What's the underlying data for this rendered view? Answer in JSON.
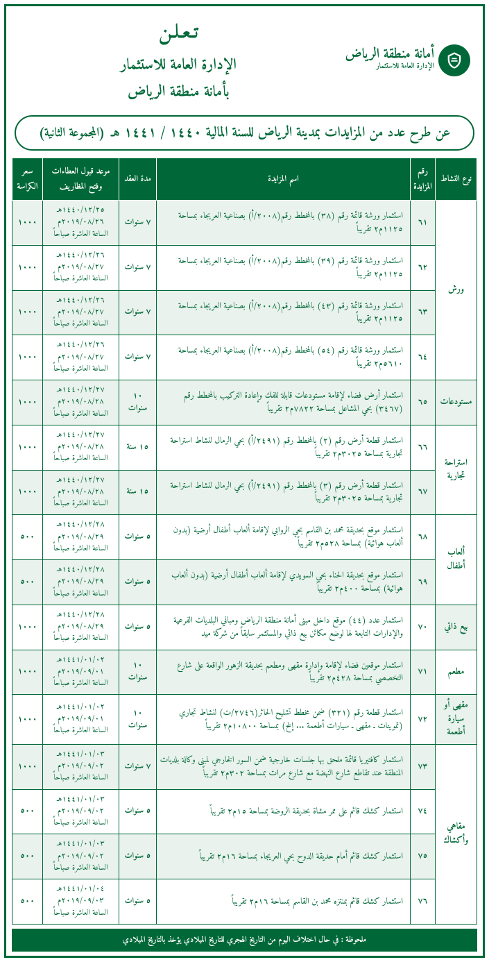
{
  "header": {
    "logo_line1": "أمانة منطقة الرياض",
    "logo_line2": "الإدارة العامة للاستثمار",
    "announce_line1": "تـعـلـن",
    "announce_line2": "الإدارة العامة للاستثمار",
    "announce_line3": "بأمانة منطقة الرياض"
  },
  "subtitle": {
    "main": "عن طرح عدد من المزايدات بمدينة الرياض للسنة المالية ١٤٤٠ / ١٤٤١ هـ",
    "paren": "(المجموعة الثانية)"
  },
  "columns": {
    "activity": "نوع النشاط",
    "num": "رقم المزايدة",
    "name": "اسم المزايدة",
    "duration": "مدة العقد",
    "date": "موعد قبول العطاءات وفتح المظاريف",
    "price": "سعر الكراسة"
  },
  "groups": [
    {
      "label": "ورش",
      "alt": false,
      "rows": [
        {
          "num": "٦١",
          "name": "استثمار ورشة قائمة رقم (٣٨) بالمخطط رقم(٢٠٠٨/أ) بصناعية العريجاء بمساحة ١١٢٥م٢ تقريباً",
          "dur": "٧ سنوات",
          "date_h": "١٤٤٠/١٢/٢٥هـ",
          "date_g": "٢٠١٩/٠٨/٢٦م",
          "time": "الساعة العاشرة صباحاً",
          "price": "١٠٠٠",
          "alt": true
        },
        {
          "num": "٦٢",
          "name": "استثمار ورشة قائمة رقم (٣٩) بالمخطط رقم(٢٠٠٨/أ) بصناعية العريجاء بمساحة ١١٢٥م٢ تقريباً",
          "dur": "٧ سنوات",
          "date_h": "١٤٤٠/١٢/٢٦هـ",
          "date_g": "٢٠١٩/٠٨/٢٧م",
          "time": "الساعة العاشرة صباحاً",
          "price": "١٠٠٠",
          "alt": false
        },
        {
          "num": "٦٣",
          "name": "استثمار ورشة قائمة رقم (٤٣) بالمخطط رقم(٢٠٠٨/أ) بصناعية العريجاء بمساحة ١١٢٥م٢ تقريباً",
          "dur": "٧ سنوات",
          "date_h": "١٤٤٠/١٢/٢٦هـ",
          "date_g": "٢٠١٩/٠٨/٢٧م",
          "time": "الساعة العاشرة صباحاً",
          "price": "١٠٠٠",
          "alt": true
        },
        {
          "num": "٦٤",
          "name": "استثمار ورشة قائمة رقم (٥٤) بالمخطط رقم(٢٠٠٨/أ) بصناعية العريجاء بمساحة ٥٦١٠م٢ تقريباً",
          "dur": "٧ سنوات",
          "date_h": "١٤٤٠/١٢/٢٦هـ",
          "date_g": "٢٠١٩/٠٨/٢٧م",
          "time": "الساعة العاشرة صباحاً",
          "price": "١٠٠٠",
          "alt": false
        }
      ]
    },
    {
      "label": "مستودعات",
      "alt": true,
      "rows": [
        {
          "num": "٦٥",
          "name": "استثمار أرض فضاء لإقامة مستودعات قابلة للفك وإعادة التركيب بالمخطط رقم (٣٤٦٧) بحي المشاعل بمساحة ٧٨٢٢م٢ تقريباً",
          "dur": "١٠ سنوات",
          "date_h": "١٤٤٠/١٢/٢٧هـ",
          "date_g": "٢٠١٩/٠٨/٢٨م",
          "time": "الساعة العاشرة صباحاً",
          "price": "١٠٠٠",
          "alt": true
        }
      ]
    },
    {
      "label": "استراحة تجارية",
      "alt": false,
      "rows": [
        {
          "num": "٦٦",
          "name": "استثمار قطعة أرض رقم (٢) بالمخطط رقم (٢٤٩١/أ) بحي الرمال لنشاط استراحة تجارية بمساحة ٣٠٢٥م٢ تقريباً",
          "dur": "١٥ سنة",
          "date_h": "١٤٤٠/١٢/٢٧هـ",
          "date_g": "٢٠١٩/٠٨/٢٨م",
          "time": "الساعة العاشرة صباحاً",
          "price": "١٠٠٠",
          "alt": false
        },
        {
          "num": "٦٧",
          "name": "استثمار قطعة أرض رقم (٣) بالمخطط رقم (٢٤٩١/أ) بحي الرمال لنشاط استراحة تجارية بمساحة ٣٠٢٥م٢ تقريباً",
          "dur": "١٥ سنة",
          "date_h": "١٤٤٠/١٢/٢٧هـ",
          "date_g": "٢٠١٩/٠٨/٢٨م",
          "time": "الساعة العاشرة صباحاً",
          "price": "١٠٠٠",
          "alt": true
        }
      ]
    },
    {
      "label": "ألعاب أطفال",
      "alt": false,
      "rows": [
        {
          "num": "٦٨",
          "name": "استثمار موقع بحديقة محمد بن القاسم بحي الروابي لإقامة ألعاب أطفال أرضية (بدون ألعاب هوائية) بمساحة ٥٢٨م٢ تقريباً",
          "dur": "٥ سنوات",
          "date_h": "١٤٤٠/١٢/٢٨هـ",
          "date_g": "٢٠١٩/٠٨/٢٩م",
          "time": "الساعة العاشرة صباحاً",
          "price": "٥٠٠",
          "alt": false
        },
        {
          "num": "٦٩",
          "name": "استثمار موقع بحديقة الحناء بحي السويدي لإقامة ألعاب أطفال أرضية (بدون ألعاب هوائية) بمساحة ٤٠٠م٢ تقريباً",
          "dur": "٥ سنوات",
          "date_h": "١٤٤٠/١٢/٢٨هـ",
          "date_g": "٢٠١٩/٠٨/٢٩م",
          "time": "الساعة العاشرة صباحاً",
          "price": "٥٠٠",
          "alt": true
        }
      ]
    },
    {
      "label": "بيع ذاتي",
      "alt": true,
      "rows": [
        {
          "num": "٧٠",
          "name": "استثمار عدد (٤٤) موقع داخل مبنى أمانة منطقة الرياض ومباني البلديات الفرعية والإدارات التابعة لها لوضع مكائن بيع ذاتي والمستثمر سابقاً من شركة ميد",
          "dur": "٥ سنوات",
          "date_h": "١٤٤٠/١٢/٢٨هـ",
          "date_g": "٢٠١٩/٠٨/٢٩م",
          "time": "الساعة العاشرة صباحاً",
          "price": "١٠٠٠",
          "alt": false
        }
      ]
    },
    {
      "label": "مطعم",
      "alt": false,
      "rows": [
        {
          "num": "٧١",
          "name": "استثمار موقعين فضاء لإقامة وإدارة مقهى ومطعم بحديقة الزهور الواقعة على شارع التخصصي بمساحة ٤٢٨م٢ تقريباً",
          "dur": "١٠ سنوات",
          "date_h": "١٤٤١/٠١/٠٢هـ",
          "date_g": "٢٠١٩/٠٩/٠١م",
          "time": "الساعة العاشرة صباحاً",
          "price": "١٠٠٠",
          "alt": true
        }
      ]
    },
    {
      "label": "مقهى أو سيارة أطعمة",
      "alt": true,
      "rows": [
        {
          "num": "٧٢",
          "name": "استثمار قطعة رقم (٣٢١) ضمن مخطط تشليح الحائر(٢٧٤٦/ت) لنشاط تجاري (تموينات ـ مقهى ـ سيارات أطعمة ... إلخ) بمساحة ١٠٨٠٠م٢ تقريباً",
          "dur": "١٠ سنوات",
          "date_h": "١٤٤١/٠١/٠٢هـ",
          "date_g": "٢٠١٩/٠٩/٠١م",
          "time": "الساعة العاشرة صباحاً",
          "price": "١٠٠٠",
          "alt": false
        }
      ]
    },
    {
      "label": "مقاهي وأكشاك",
      "alt": false,
      "rows": [
        {
          "num": "٧٣",
          "name": "استثمار كافتيريا قائمة ملحق بها جلسات خارجية ضمن السور الخارجي لمبنى وكالة بلديات المنطقة عند تقاطع شارع النهضة مع شارع مرات بمساحة ٣٠٢م٢ تقريباً",
          "dur": "٧ سنوات",
          "date_h": "١٤٤١/٠١/٠٣هـ",
          "date_g": "٢٠١٩/٠٩/٠٢م",
          "time": "الساعة العاشرة صباحاً",
          "price": "١٠٠٠",
          "alt": true
        },
        {
          "num": "٧٤",
          "name": "استثمار كشك قائم على ممر مشاة بحديقة الروضة بمساحة ١٥م٢ تقريباً",
          "dur": "٥ سنوات",
          "date_h": "١٤٤١/٠١/٠٣هـ",
          "date_g": "٢٠١٩/٠٩/٠٢م",
          "time": "الساعة العاشرة صباحاً",
          "price": "٥٠٠",
          "alt": false
        },
        {
          "num": "٧٥",
          "name": "استثمار كشك قائم أمام حديقة الدوح بحي العريجاء بمساحة ١٦م٢ تقريباً",
          "dur": "٥ سنوات",
          "date_h": "١٤٤١/٠١/٠٣هـ",
          "date_g": "٢٠١٩/٠٩/٠٢م",
          "time": "الساعة العاشرة صباحاً",
          "price": "٥٠٠",
          "alt": true
        },
        {
          "num": "٧٦",
          "name": "استثمار كشك قائم بمنتزه محمد بن القاسم بمساحة ١٦م٢ تقريباً",
          "dur": "٥ سنوات",
          "date_h": "١٤٤١/٠١/٠٤هـ",
          "date_g": "٢٠١٩/٠٩/٠٣م",
          "time": "الساعة العاشرة صباحاً",
          "price": "٥٠٠",
          "alt": false
        }
      ]
    }
  ],
  "footer_note": "ملحوظة : في حال اختلاف اليوم من التاريخ الهجري للتاريخ الميلادي يؤخذ بالتاريخ الميلادي"
}
